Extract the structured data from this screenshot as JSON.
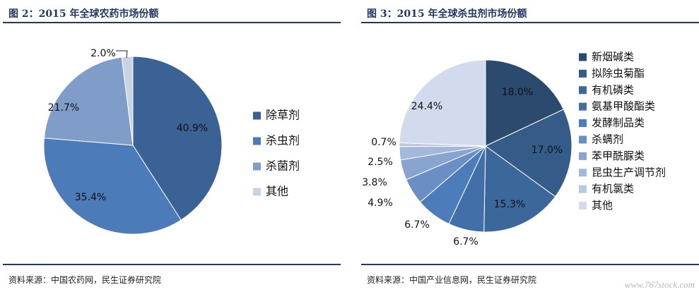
{
  "chart_data": [
    {
      "type": "pie",
      "title": "图 2：2015 年全球农药市场份额",
      "source": "资料来源：中国农药网，民生证券研究院",
      "legend_position": "right",
      "categories": [
        "除草剂",
        "杀虫剂",
        "杀菌剂",
        "其他"
      ],
      "values": [
        40.9,
        35.4,
        21.7,
        2.0
      ],
      "data_labels": [
        "40.9%",
        "35.4%",
        "21.7%",
        "2.0%"
      ],
      "colors": [
        "#3a6294",
        "#4b7bb8",
        "#7f9dc8",
        "#c9d3e6"
      ]
    },
    {
      "type": "pie",
      "title": "图 3：2015 年全球杀虫剂市场份额",
      "source": "资料来源：中国产业信息网，民生证券研究院",
      "legend_position": "right",
      "categories": [
        "新烟碱类",
        "拟除虫菊酯",
        "有机磷类",
        "氨基甲酸酯类",
        "发酵制品类",
        "杀螨剂",
        "苯甲酰脲类",
        "昆虫生产调节剂",
        "有机氯类",
        "其他"
      ],
      "values": [
        18.0,
        17.0,
        15.3,
        6.7,
        6.7,
        4.9,
        3.8,
        2.5,
        0.7,
        24.4
      ],
      "data_labels": [
        "18.0%",
        "17.0%",
        "15.3%",
        "6.7%",
        "6.7%",
        "4.9%",
        "3.8%",
        "2.5%",
        "0.7%",
        "24.4%"
      ],
      "colors": [
        "#2b4a6e",
        "#355c88",
        "#3c679b",
        "#426fa8",
        "#4c7cb9",
        "#6a8fc4",
        "#88a4cf",
        "#a3b8da",
        "#bac9e2",
        "#d1dbed"
      ]
    }
  ],
  "watermark": "www.767stock.com"
}
